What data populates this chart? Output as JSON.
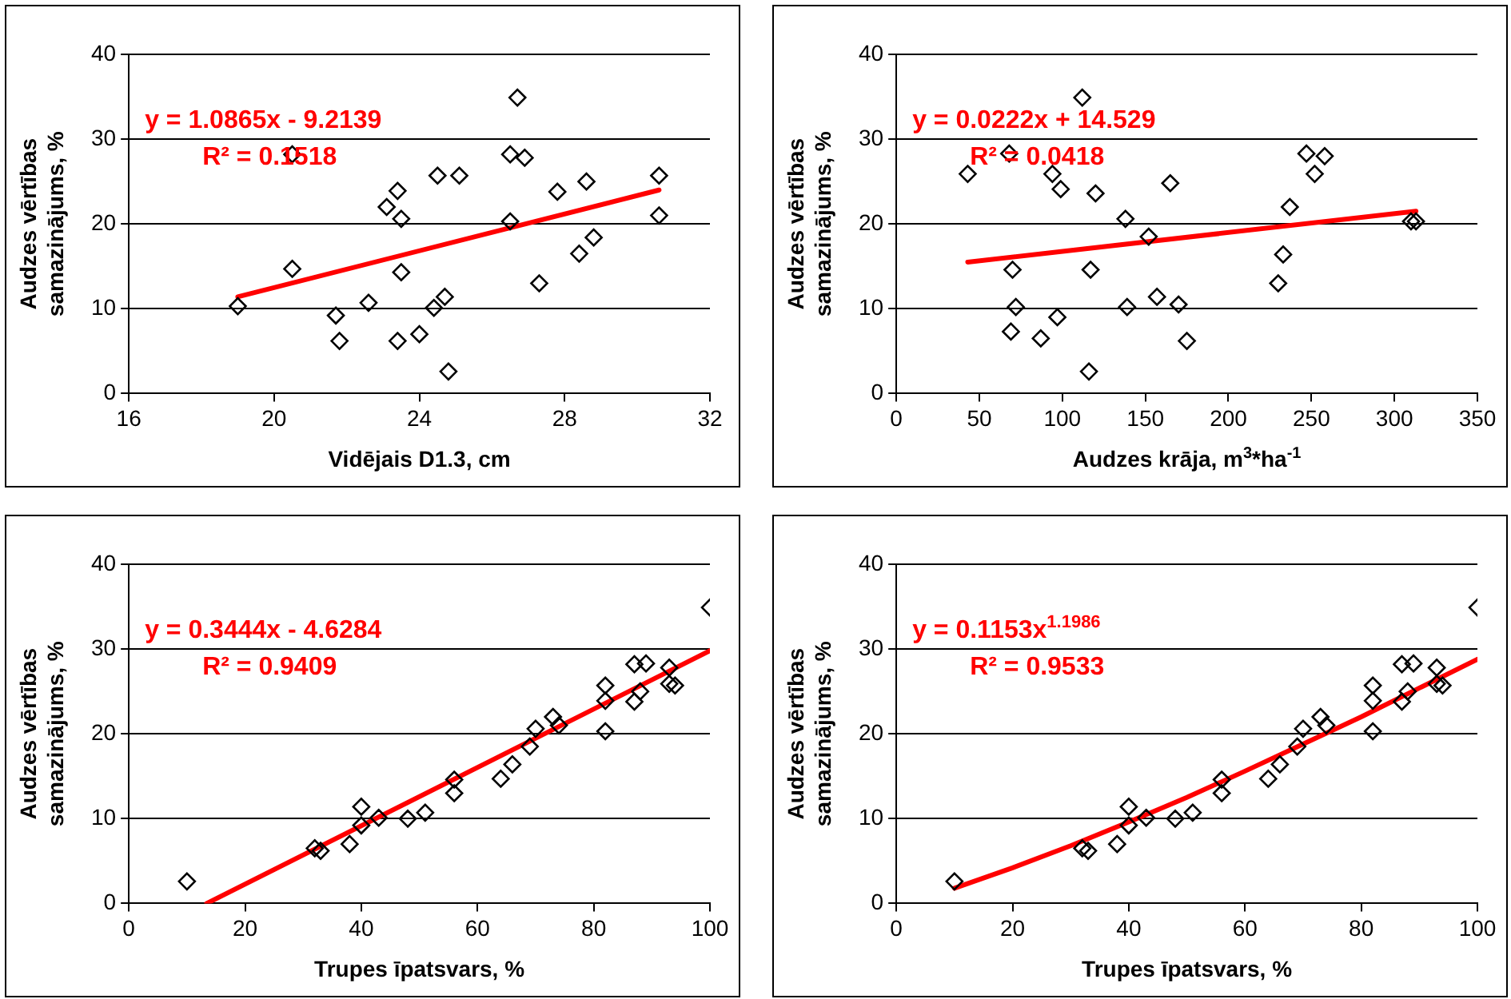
{
  "chart_data": [
    {
      "type": "scatter",
      "xlabel": "Vidējais D1.3, cm",
      "ylabel": "Audzes vērtības\nsamazinājums, %",
      "annotations": [
        "y = 1.0865x - 9.2139",
        "R² = 0.1518"
      ],
      "grid": "y",
      "legend": false,
      "xlim": [
        16,
        32
      ],
      "xticks": [
        16,
        20,
        24,
        28,
        32
      ],
      "ylim": [
        0,
        40
      ],
      "yticks": [
        0,
        10,
        20,
        30,
        40
      ],
      "series": [
        {
          "type": "scatter",
          "marker": "diamond",
          "color": "#000000",
          "x": [
            19.0,
            20.5,
            20.5,
            21.7,
            21.8,
            22.6,
            23.1,
            23.4,
            23.5,
            23.5,
            23.4,
            24.0,
            24.4,
            24.7,
            24.5,
            24.8,
            25.1,
            26.5,
            26.5,
            26.7,
            26.9,
            27.3,
            27.8,
            28.4,
            28.6,
            28.8,
            30.6,
            30.6
          ],
          "values": [
            10.3,
            28.2,
            14.7,
            9.2,
            6.2,
            10.7,
            22.0,
            23.9,
            20.6,
            14.3,
            6.2,
            7.0,
            10.1,
            11.4,
            25.7,
            2.6,
            25.7,
            20.3,
            28.2,
            34.9,
            27.8,
            13.0,
            23.8,
            16.5,
            25.0,
            18.4,
            25.7,
            21.0
          ]
        },
        {
          "type": "line",
          "marker": "none",
          "color": "#ff0000",
          "x": [
            19.0,
            30.6
          ],
          "values": [
            11.4,
            24.0
          ]
        }
      ]
    },
    {
      "type": "scatter",
      "xlabel": "Audzes krāja, m$^{3}$*ha$^{-1}$",
      "ylabel": "Audzes vērtības\nsamazinājums, %",
      "annotations": [
        "y = 0.0222x + 14.529",
        "R² = 0.0418"
      ],
      "grid": "y",
      "legend": false,
      "xlim": [
        0,
        350
      ],
      "xticks": [
        0,
        50,
        100,
        150,
        200,
        250,
        300,
        350
      ],
      "ylim": [
        0,
        40
      ],
      "yticks": [
        0,
        10,
        20,
        30,
        40
      ],
      "series": [
        {
          "type": "scatter",
          "marker": "diamond",
          "color": "#000000",
          "x": [
            43,
            68,
            69,
            70,
            72,
            87,
            94,
            97,
            99,
            112,
            116,
            117,
            120,
            138,
            139,
            152,
            157,
            165,
            170,
            175,
            230,
            233,
            237,
            247,
            252,
            258,
            310,
            313
          ],
          "values": [
            25.9,
            28.3,
            7.3,
            14.6,
            10.2,
            6.5,
            25.9,
            9.0,
            24.1,
            34.9,
            2.6,
            14.6,
            23.6,
            20.6,
            10.2,
            18.5,
            11.4,
            24.8,
            10.5,
            6.2,
            13.0,
            16.4,
            22.0,
            28.3,
            25.9,
            28.0,
            20.3,
            20.3
          ]
        },
        {
          "type": "line",
          "marker": "none",
          "color": "#ff0000",
          "x": [
            43,
            313
          ],
          "values": [
            15.5,
            21.5
          ]
        }
      ]
    },
    {
      "type": "scatter",
      "xlabel": "Trupes īpatsvars, %",
      "ylabel": "Audzes vērtības\nsamazinājums, %",
      "annotations": [
        "y = 0.3444x - 4.6284",
        "R² = 0.9409"
      ],
      "grid": "y",
      "legend": false,
      "xlim": [
        0,
        100
      ],
      "xticks": [
        0,
        20,
        40,
        60,
        80,
        100
      ],
      "ylim": [
        0,
        40
      ],
      "yticks": [
        0,
        10,
        20,
        30,
        40
      ],
      "series": [
        {
          "type": "scatter",
          "marker": "diamond",
          "color": "#000000",
          "x": [
            10,
            32,
            33,
            38,
            40,
            40,
            43,
            48,
            51,
            56,
            56,
            64,
            66,
            69,
            70,
            73,
            74,
            82,
            82,
            82,
            87,
            87,
            88,
            89,
            93,
            93,
            94,
            100
          ],
          "values": [
            2.6,
            6.5,
            6.2,
            7.0,
            11.4,
            9.2,
            10.1,
            10.0,
            10.7,
            14.6,
            13.0,
            14.7,
            16.4,
            18.5,
            20.6,
            22.0,
            21.0,
            25.7,
            23.9,
            20.3,
            28.2,
            23.8,
            25.0,
            28.3,
            25.9,
            27.8,
            25.7,
            34.9
          ]
        },
        {
          "type": "line",
          "marker": "none",
          "color": "#ff0000",
          "x": [
            13.4,
            100
          ],
          "values": [
            0,
            29.8
          ]
        }
      ]
    },
    {
      "type": "scatter",
      "xlabel": "Trupes īpatsvars, %",
      "ylabel": "Audzes vērtības\nsamazinājums, %",
      "annotations": [
        "y = 0.1153x$^{1.1986}$",
        "R² = 0.9533"
      ],
      "grid": "y",
      "legend": false,
      "xlim": [
        0,
        100
      ],
      "xticks": [
        0,
        20,
        40,
        60,
        80,
        100
      ],
      "ylim": [
        0,
        40
      ],
      "yticks": [
        0,
        10,
        20,
        30,
        40
      ],
      "series": [
        {
          "type": "scatter",
          "marker": "diamond",
          "color": "#000000",
          "x": [
            10,
            32,
            33,
            38,
            40,
            40,
            43,
            48,
            51,
            56,
            56,
            64,
            66,
            69,
            70,
            73,
            74,
            82,
            82,
            82,
            87,
            87,
            88,
            89,
            93,
            93,
            94,
            100
          ],
          "values": [
            2.6,
            6.5,
            6.2,
            7.0,
            11.4,
            9.2,
            10.1,
            10.0,
            10.7,
            14.6,
            13.0,
            14.7,
            16.4,
            18.5,
            20.6,
            22.0,
            21.0,
            25.7,
            23.9,
            20.3,
            28.2,
            23.8,
            25.0,
            28.3,
            25.9,
            27.8,
            25.7,
            34.9
          ]
        },
        {
          "type": "line",
          "marker": "none",
          "color": "#ff0000",
          "x": [
            10,
            20,
            30,
            40,
            50,
            60,
            70,
            80,
            90,
            100
          ],
          "values": [
            1.8,
            4.2,
            6.8,
            9.6,
            12.5,
            15.6,
            18.8,
            22.0,
            25.4,
            28.8
          ]
        }
      ]
    }
  ]
}
